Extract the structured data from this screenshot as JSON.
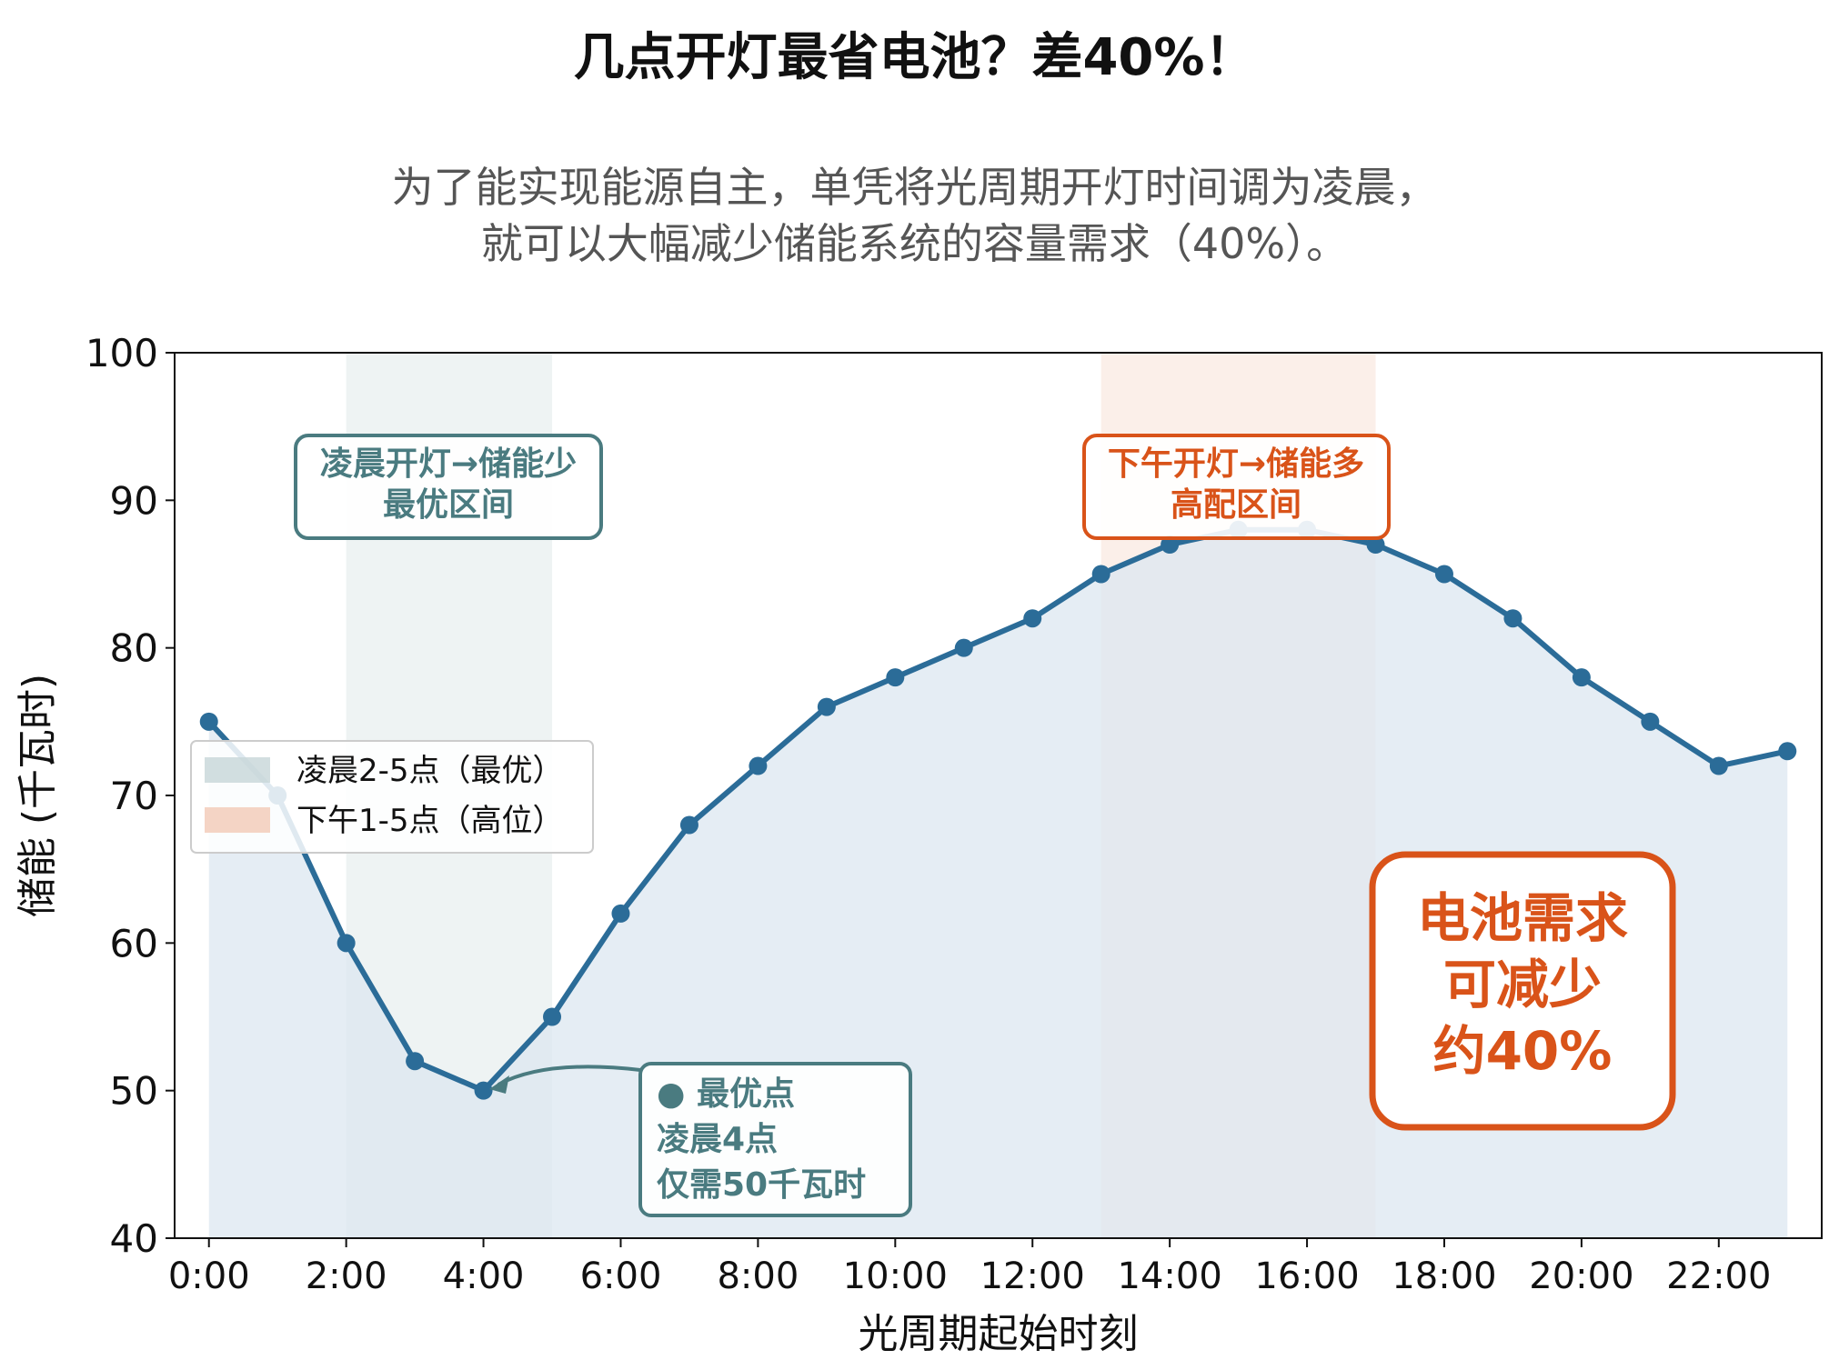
{
  "title": "几点开灯最省电池？差40%！",
  "subtitle_lines": [
    "为了能实现能源自主，单凭将光周期开灯时间调为凌晨，",
    "就可以大幅减少储能系统的容量需求（40%）。"
  ],
  "annotations": {
    "early_box": [
      "凌晨开灯→储能少",
      "最优区间"
    ],
    "afternoon_box": [
      "下午开灯→储能多",
      "高配区间"
    ],
    "optimal_point": [
      "● 最优点",
      "凌晨4点",
      "仅需50千瓦时"
    ],
    "battery_box": [
      "电池需求",
      "可减少",
      "约40%"
    ]
  },
  "colors": {
    "line": "#2b6c98",
    "fill": "#dce7f0",
    "early_band": "#c7d6d8",
    "afternoon_band": "#f3c9b6",
    "teal": "#4a7b80",
    "orange": "#d95319"
  },
  "chart_data": {
    "type": "line",
    "x": [
      0,
      1,
      2,
      3,
      4,
      5,
      6,
      7,
      8,
      9,
      10,
      11,
      12,
      13,
      14,
      15,
      16,
      17,
      18,
      19,
      20,
      21,
      22,
      23
    ],
    "series": [
      {
        "values": [
          75,
          70,
          60,
          52,
          50,
          55,
          62,
          68,
          72,
          76,
          78,
          80,
          82,
          85,
          87,
          88,
          88,
          87,
          85,
          82,
          78,
          75,
          72,
          73
        ]
      }
    ],
    "xlabel": "光周期起始时刻",
    "ylabel": "储能 (千瓦时)",
    "ylim": [
      40,
      100
    ],
    "xlim": [
      -0.5,
      23.5
    ],
    "yticks": [
      40,
      50,
      60,
      70,
      80,
      90,
      100
    ],
    "xticks": [
      0,
      2,
      4,
      6,
      8,
      10,
      12,
      14,
      16,
      18,
      20,
      22
    ],
    "xtick_labels": [
      "0:00",
      "2:00",
      "4:00",
      "6:00",
      "8:00",
      "10:00",
      "12:00",
      "14:00",
      "16:00",
      "18:00",
      "20:00",
      "22:00"
    ],
    "bands": [
      {
        "name": "凌晨2-5点（最优）",
        "from": 2,
        "to": 5
      },
      {
        "name": "下午1-5点（高位）",
        "from": 13,
        "to": 17
      }
    ],
    "legend_position": "center-left",
    "grid": false
  }
}
